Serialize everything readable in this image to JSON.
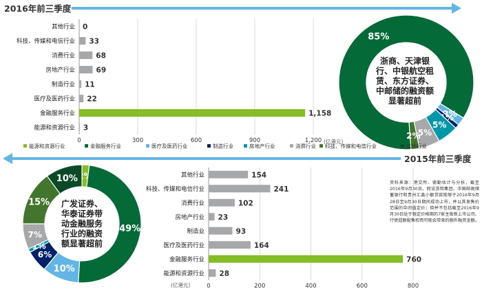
{
  "section_2016": {
    "title": "2016年前三季度",
    "axis_unit": "(亿港元)",
    "donut_center_text": [
      "浙商、天津银",
      "行、中银航空租",
      "赁、东方证券、",
      "中邮储的融资额",
      "显著超前"
    ]
  },
  "section_2015": {
    "title": "2015年前三季度",
    "axis_unit": "(亿港元)",
    "donut_center_text": [
      "广发证券、",
      "华泰证券带",
      "动金融服务",
      "行业的融资",
      "额显著超前"
    ]
  },
  "legend": [
    {
      "label": "能源和资源行业",
      "color": "#86bc25"
    },
    {
      "label": "金融服务行业",
      "color": "#046a38"
    },
    {
      "label": "医疗及医药行业",
      "color": "#62b5e5"
    },
    {
      "label": "制造行业",
      "color": "#012169"
    },
    {
      "label": "房地产行业",
      "color": "#0097a9"
    },
    {
      "label": "消费行业",
      "color": "#a7a8aa"
    },
    {
      "label": "科技、传媒和电信行业",
      "color": "#43752d"
    },
    {
      "label": "其他行业",
      "color": "#0c4a27"
    }
  ],
  "source_note": "资料来源：港交所、德勤估计与分析，截至2016年9月30日。假设浙和集团、中国邮政储蓄银行和贵州汇鑫小额贷款能够于2016年9月28日至9月30日期间成功上市，并以其发售价范围的中间值定价；但并不包括截至2016年9月30日处于稳定价格期的7家主板新上市公司、行使超额配售权而可能会带来的额外融资金额。",
  "colors": {
    "banner_arrow": "#62b5e5",
    "bar_gray": "#a7a8aa",
    "bar_highlight": "#86bc25",
    "title_text": "#333333"
  },
  "chart_data": [
    {
      "type": "bar",
      "orientation": "horizontal",
      "title": "2016年前三季度",
      "categories": [
        "其他行业",
        "科技、传媒和电信行业",
        "消费行业",
        "房地产行业",
        "制造行业",
        "医疗及医药行业",
        "金融服务行业",
        "能源和资源行业"
      ],
      "values": [
        0,
        33,
        68,
        69,
        11,
        22,
        1158,
        3
      ],
      "value_labels": [
        "0",
        "33",
        "68",
        "69",
        "11",
        "22",
        "1,158",
        "3"
      ],
      "xlim": [
        0,
        1200
      ],
      "xticks": [
        "0",
        "300",
        "600",
        "900",
        "1,200"
      ],
      "xlabel": "(亿港元)",
      "grid": true
    },
    {
      "type": "pie",
      "variant": "donut",
      "title": "2016年前三季度",
      "slices": [
        {
          "label": "金融服务行业",
          "value": 85,
          "text": "85%",
          "color": "#046a38"
        },
        {
          "label": "能源和资源行业",
          "value": 0,
          "text": "",
          "color": "#86bc25"
        },
        {
          "label": "医疗及医药行业",
          "value": 2,
          "text": "2%",
          "color": "#62b5e5"
        },
        {
          "label": "制造行业",
          "value": 1,
          "text": "1%",
          "color": "#012169"
        },
        {
          "label": "房地产行业",
          "value": 5,
          "text": "5%",
          "color": "#0097a9"
        },
        {
          "label": "消费行业",
          "value": 5,
          "text": "5%",
          "color": "#a7a8aa"
        },
        {
          "label": "科技、传媒和电信行业",
          "value": 2,
          "text": "2%",
          "color": "#43752d"
        },
        {
          "label": "其他行业",
          "value": 0,
          "text": "",
          "color": "#0c4a27"
        }
      ]
    },
    {
      "type": "bar",
      "orientation": "horizontal",
      "title": "2015年前三季度",
      "categories": [
        "其他行业",
        "科技、传媒和电信行业",
        "消费行业",
        "房地产行业",
        "制造业",
        "医疗及医药行业",
        "金融服务行业",
        "能源和资源行业"
      ],
      "values": [
        154,
        241,
        102,
        23,
        93,
        164,
        760,
        28
      ],
      "value_labels": [
        "154",
        "241",
        "102",
        "23",
        "93",
        "164",
        "760",
        "28"
      ],
      "xlim": [
        0,
        800
      ],
      "xticks": [
        "0",
        "200",
        "400",
        "600",
        "800"
      ],
      "xlabel": "(亿港元)",
      "grid": true
    },
    {
      "type": "pie",
      "variant": "donut",
      "title": "2015年前三季度",
      "slices": [
        {
          "label": "能源和资源行业",
          "value": 2,
          "text": "2%",
          "color": "#86bc25"
        },
        {
          "label": "金融服务行业",
          "value": 49,
          "text": "49%",
          "color": "#046a38"
        },
        {
          "label": "医疗及医药行业",
          "value": 10,
          "text": "10%",
          "color": "#62b5e5"
        },
        {
          "label": "制造行业",
          "value": 6,
          "text": "6%",
          "color": "#012169"
        },
        {
          "label": "房地产行业",
          "value": 1,
          "text": "1%",
          "color": "#0097a9"
        },
        {
          "label": "消费行业",
          "value": 7,
          "text": "7%",
          "color": "#a7a8aa"
        },
        {
          "label": "科技、传媒和电信行业",
          "value": 15,
          "text": "15%",
          "color": "#43752d"
        },
        {
          "label": "其他行业",
          "value": 10,
          "text": "10%",
          "color": "#0c4a27"
        }
      ]
    }
  ]
}
